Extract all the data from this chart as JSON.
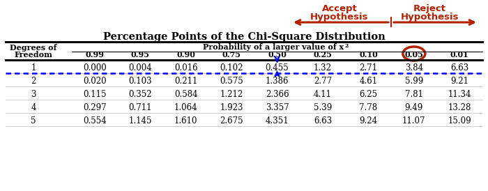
{
  "title": "Percentage Points of the Chi-Square Distribution",
  "col_headers": [
    "0.99",
    "0.95",
    "0.90",
    "0.75",
    "0.50",
    "0.25",
    "0.10",
    "0.05",
    "0.01"
  ],
  "row_labels": [
    "1",
    "2",
    "3",
    "4",
    "5"
  ],
  "table_data": [
    [
      "0.000",
      "0.004",
      "0.016",
      "0.102",
      "0.455",
      "1.32",
      "2.71",
      "3.84",
      "6.63"
    ],
    [
      "0.020",
      "0.103",
      "0.211",
      "0.575",
      "1.386",
      "2.77",
      "4.61",
      "5.99",
      "9.21"
    ],
    [
      "0.115",
      "0.352",
      "0.584",
      "1.212",
      "2.366",
      "4.11",
      "6.25",
      "7.81",
      "11.34"
    ],
    [
      "0.297",
      "0.711",
      "1.064",
      "1.923",
      "3.357",
      "5.39",
      "7.78",
      "9.49",
      "13.28"
    ],
    [
      "0.554",
      "1.145",
      "1.610",
      "2.675",
      "4.351",
      "6.63",
      "9.24",
      "11.07",
      "15.09"
    ]
  ],
  "prob_header": "Probability of a larger value of x",
  "df_header_line1": "Degrees of",
  "df_header_line2": "Freedom",
  "accept_text_line1": "Accept",
  "accept_text_line2": "Hypothesis",
  "reject_text_line1": "Reject",
  "reject_text_line2": "Hypothesis",
  "arrow_color": "#B22200",
  "circle_col_idx": 7,
  "background_color": "#ffffff",
  "text_color": "#000000"
}
